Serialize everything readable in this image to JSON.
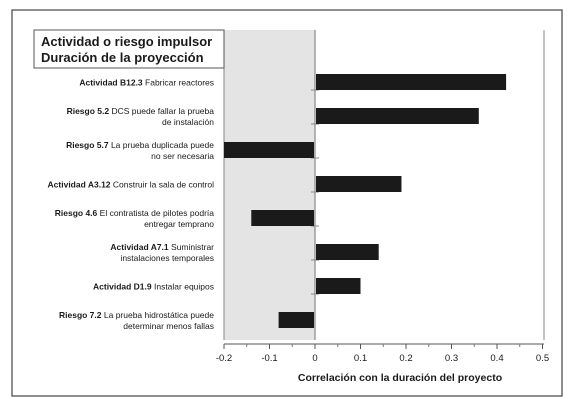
{
  "chart_data": {
    "type": "bar",
    "orientation": "horizontal",
    "title": "Actividad o riesgo impulsor",
    "subtitle": "Duración de la proyección",
    "xlabel": "Correlación con la duración del proyecto",
    "xlim": [
      -0.2,
      0.5
    ],
    "xticks": [
      "-0.2",
      "-0.1",
      "0",
      "0.1",
      "0.2",
      "0.3",
      "0.4",
      "0.5"
    ],
    "grid": false,
    "bar_color": "#1a1a1a",
    "shade_color": "#e4e4e4",
    "categories": [
      {
        "id": "Actividad B12.3",
        "text": [
          "Fabricar reactores"
        ]
      },
      {
        "id": "Riesgo 5.2",
        "text": [
          "DCS puede fallar la prueba",
          "de instalación"
        ]
      },
      {
        "id": "Riesgo 5.7",
        "text": [
          "La prueba duplicada puede",
          "no ser necesaria"
        ]
      },
      {
        "id": "Actividad A3.12",
        "text": [
          "Construir la sala de control"
        ]
      },
      {
        "id": "Riesgo 4.6",
        "text": [
          "El contratista de pilotes podría",
          "entregar temprano"
        ]
      },
      {
        "id": "Actividad A7.1",
        "text": [
          "Suministrar",
          "instalaciones temporales"
        ]
      },
      {
        "id": "Actividad D1.9",
        "text": [
          "Instalar equipos"
        ]
      },
      {
        "id": "Riesgo 7.2",
        "text": [
          "La prueba hidrostática puede",
          "determinar menos fallas"
        ]
      }
    ],
    "values": [
      0.42,
      0.36,
      -0.2,
      0.19,
      -0.14,
      0.14,
      0.1,
      -0.08
    ]
  }
}
